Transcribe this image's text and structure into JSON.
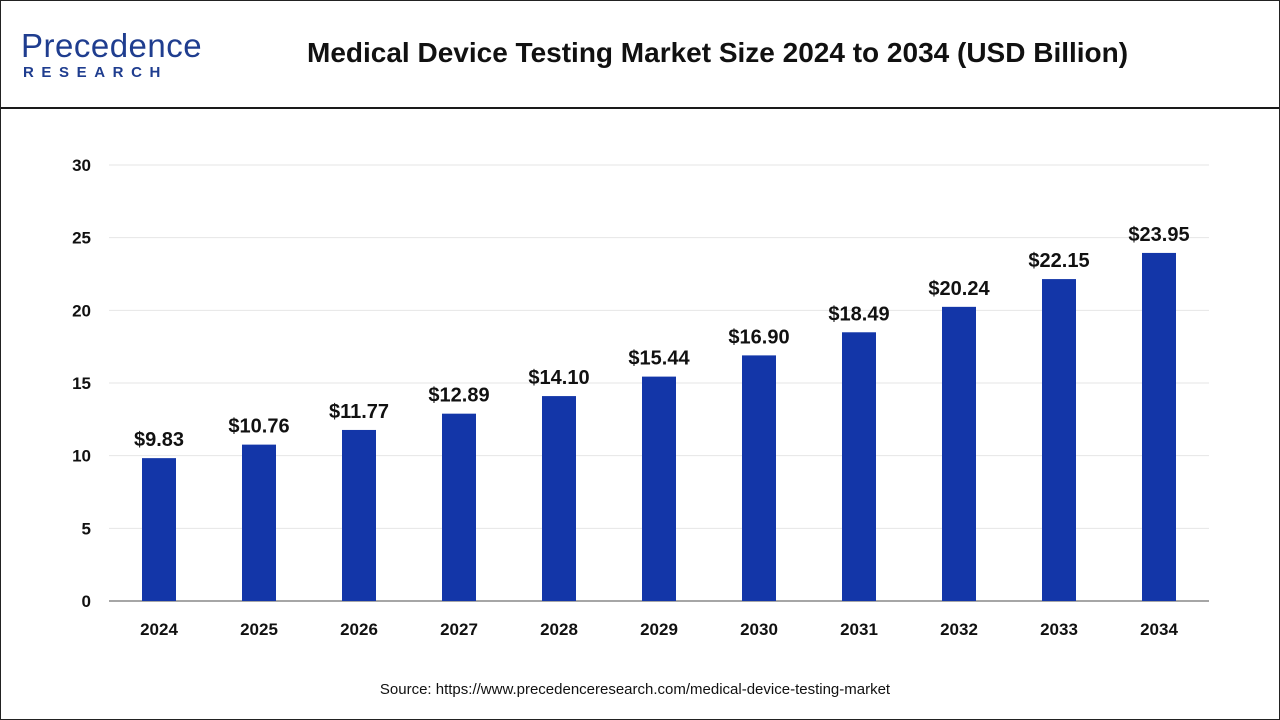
{
  "header": {
    "logo_main": "Precedence",
    "logo_sub": "RESEARCH",
    "title": "Medical Device Testing Market Size 2024 to 2034 (USD Billion)"
  },
  "footer": {
    "source": "Source: https://www.precedenceresearch.com/medical-device-testing-market"
  },
  "colors": {
    "bar": "#1336a8",
    "axis": "#888888",
    "grid": "#e6e6e6",
    "text": "#111111",
    "brand": "#1f3d8f"
  },
  "chart_data": {
    "type": "bar",
    "categories": [
      "2024",
      "2025",
      "2026",
      "2027",
      "2028",
      "2029",
      "2030",
      "2031",
      "2032",
      "2033",
      "2034"
    ],
    "values": [
      9.83,
      10.76,
      11.77,
      12.89,
      14.1,
      15.44,
      16.9,
      18.49,
      20.24,
      22.15,
      23.95
    ],
    "data_labels": [
      "$9.83",
      "$10.76",
      "$11.77",
      "$12.89",
      "$14.10",
      "$15.44",
      "$16.90",
      "$18.49",
      "$20.24",
      "$22.15",
      "$23.95"
    ],
    "title": "Medical Device Testing Market Size 2024 to 2034 (USD Billion)",
    "xlabel": "",
    "ylabel": "",
    "ylim": [
      0,
      30
    ],
    "yticks": [
      0,
      5,
      10,
      15,
      20,
      25,
      30
    ],
    "grid": true,
    "legend": "none"
  }
}
